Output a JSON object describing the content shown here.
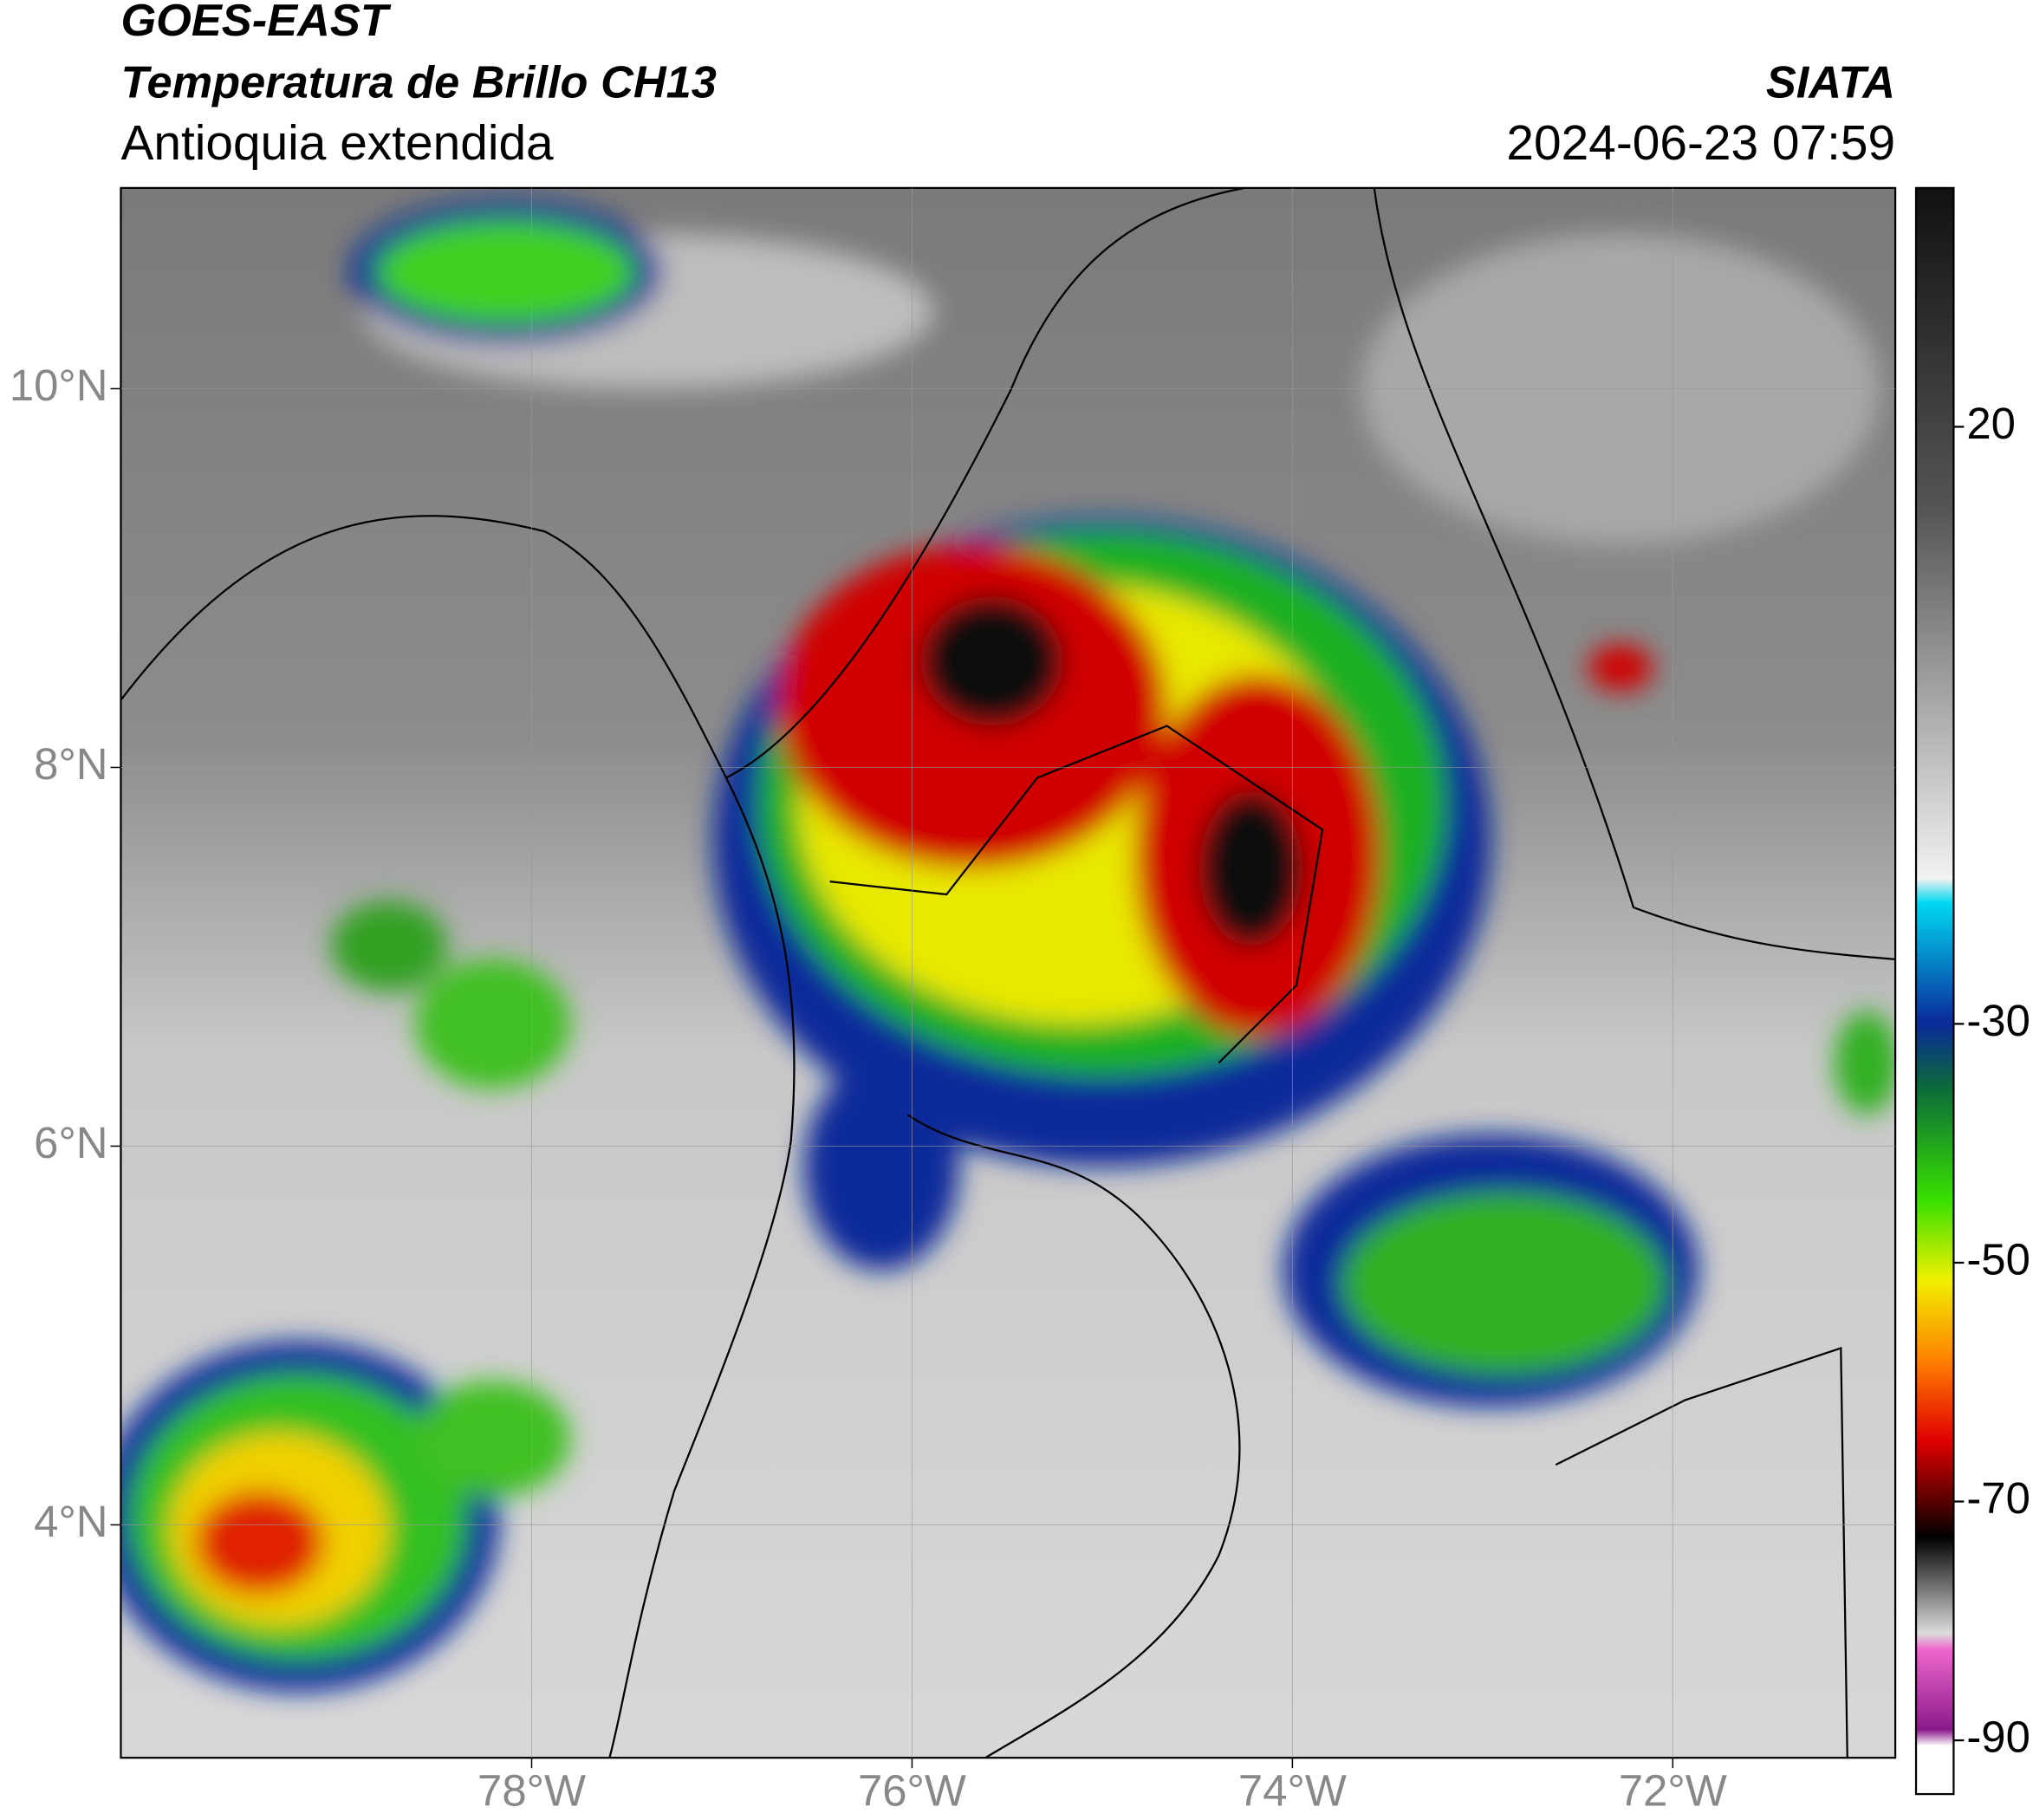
{
  "header": {
    "title": "GOES-EAST",
    "subtitle": "Temperatura de Brillo CH13",
    "region": "Antioquia extendida",
    "source": "SIATA",
    "datetime": "2024-06-23 07:59"
  },
  "map": {
    "xlim": [
      -80.16,
      -70.83
    ],
    "ylim": [
      2.77,
      11.06
    ],
    "xticks": [
      {
        "value": -78,
        "label": "78°W"
      },
      {
        "value": -76,
        "label": "76°W"
      },
      {
        "value": -74,
        "label": "74°W"
      },
      {
        "value": -72,
        "label": "72°W"
      }
    ],
    "yticks": [
      {
        "value": 4,
        "label": "4°N"
      },
      {
        "value": 6,
        "label": "6°N"
      },
      {
        "value": 8,
        "label": "8°N"
      },
      {
        "value": 10,
        "label": "10°N"
      }
    ],
    "grid": true
  },
  "colorbar": {
    "lim": [
      -94.5,
      40
    ],
    "ticks": [
      20,
      -30,
      -50,
      -70,
      -90
    ]
  }
}
